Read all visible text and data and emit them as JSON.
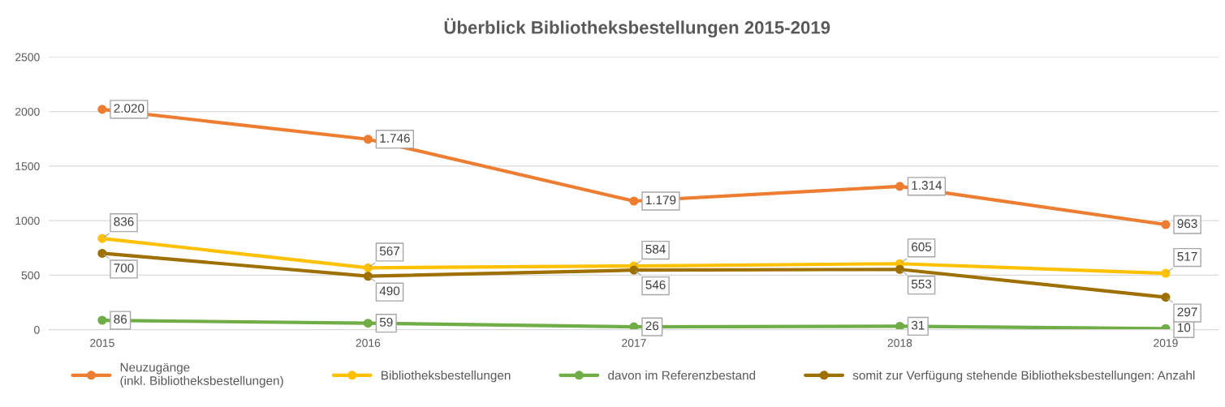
{
  "chart_data": {
    "type": "line",
    "title": "Überblick Bibliotheksbestellungen 2015-2019",
    "categories": [
      "2015",
      "2016",
      "2017",
      "2018",
      "2019"
    ],
    "series": [
      {
        "name": "Neuzugänge\n(inkl. Bibliotheksbestellungen)",
        "color": "#ed7d31",
        "values": [
          2020,
          1746,
          1179,
          1314,
          963
        ],
        "value_labels": [
          "2.020",
          "1.746",
          "1.179",
          "1.314",
          "963"
        ]
      },
      {
        "name": "Bibliotheksbestellungen",
        "color": "#ffc000",
        "values": [
          836,
          567,
          584,
          605,
          517
        ],
        "value_labels": [
          "836",
          "567",
          "584",
          "605",
          "517"
        ]
      },
      {
        "name": "davon im Referenzbestand",
        "color": "#70ad47",
        "values": [
          86,
          59,
          26,
          31,
          10
        ],
        "value_labels": [
          "86",
          "59",
          "26",
          "31",
          "10"
        ]
      },
      {
        "name": "somit zur Verfügung stehende Bibliotheksbestellungen: Anzahl",
        "color": "#9e7000",
        "values": [
          700,
          490,
          546,
          553,
          297
        ],
        "value_labels": [
          "700",
          "490",
          "546",
          "553",
          "297"
        ]
      }
    ],
    "ylim": [
      0,
      2500
    ],
    "yticks": [
      0,
      500,
      1000,
      1500,
      2000,
      2500
    ],
    "grid": "y",
    "legend": "bottom",
    "marker": "circle",
    "line_style": "solid"
  }
}
